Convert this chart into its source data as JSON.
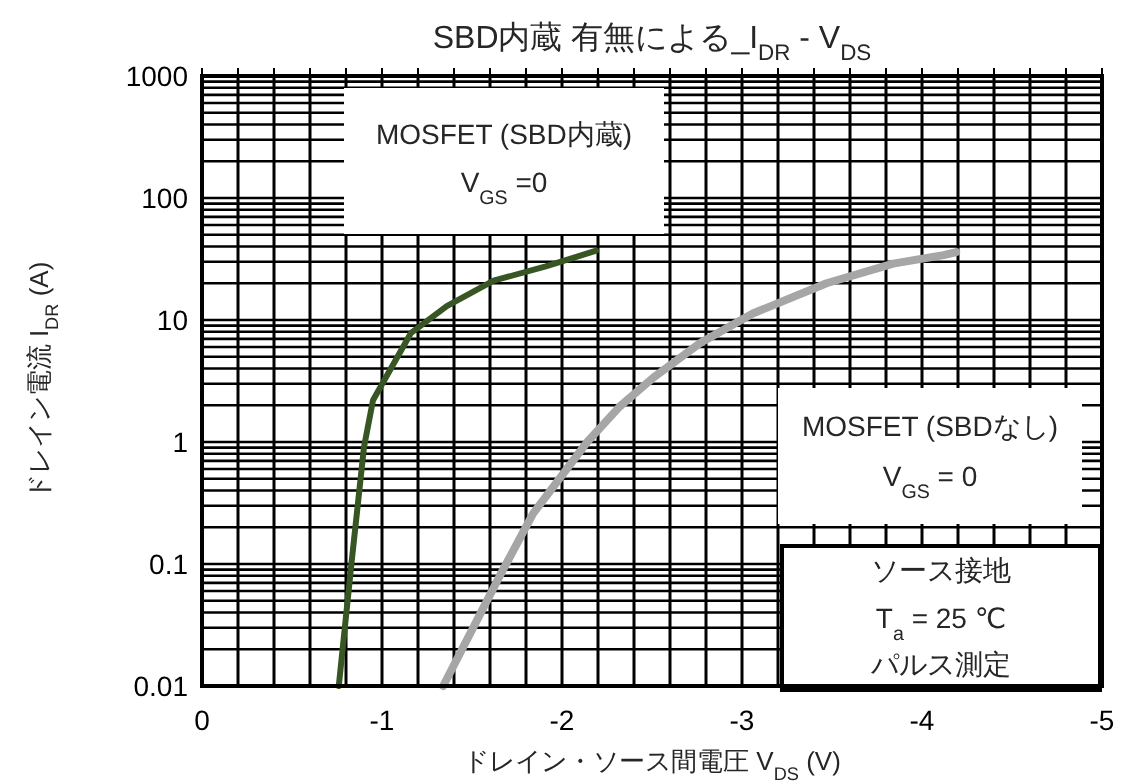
{
  "chart_data": {
    "type": "line",
    "title": "SBD内蔵 有無による_I$_{DR}$ - V$_{DS}$",
    "xlabel": "ドレイン・ソース間電圧  V$_{DS}$  (V)",
    "ylabel": "ドレイン電流 I$_{DR}$ (A)",
    "annotations": [
      "MOSFET (SBD内蔵)",
      "V$_{GS}$ =0",
      "MOSFET (SBDなし)",
      "V$_{GS}$ = 0",
      "ソース接地",
      "T$_{a}$ = 25 ℃",
      "パルス測定"
    ],
    "log": "y",
    "grid": true,
    "xlim": [
      0,
      -5
    ],
    "xticks": [
      0,
      {
        "value": -0.2,
        "label": null
      },
      {
        "value": -0.4,
        "label": null
      },
      {
        "value": -0.6,
        "label": null
      },
      {
        "value": -0.8,
        "label": null
      },
      -1,
      {
        "value": -1.2,
        "label": null
      },
      {
        "value": -1.4,
        "label": null
      },
      {
        "value": -1.6,
        "label": null
      },
      {
        "value": -1.8,
        "label": null
      },
      -2,
      {
        "value": -2.2,
        "label": null
      },
      {
        "value": -2.4,
        "label": null
      },
      {
        "value": -2.6,
        "label": null
      },
      {
        "value": -2.8,
        "label": null
      },
      -3,
      {
        "value": -3.2,
        "label": null
      },
      {
        "value": -3.4,
        "label": null
      },
      {
        "value": -3.6,
        "label": null
      },
      {
        "value": -3.8,
        "label": null
      },
      -4,
      {
        "value": -4.2,
        "label": null
      },
      {
        "value": -4.4,
        "label": null
      },
      {
        "value": -4.6,
        "label": null
      },
      {
        "value": -4.8,
        "label": null
      },
      -5
    ],
    "ylim": [
      0.01,
      1000
    ],
    "yticks": [
      0.01,
      {
        "value": 0.02,
        "label": null
      },
      {
        "value": 0.03,
        "label": null
      },
      {
        "value": 0.04,
        "label": null
      },
      {
        "value": 0.05,
        "label": null
      },
      {
        "value": 0.06,
        "label": null
      },
      {
        "value": 0.07,
        "label": null
      },
      {
        "value": 0.08,
        "label": null
      },
      {
        "value": 0.09,
        "label": null
      },
      0.1,
      {
        "value": 0.2,
        "label": null
      },
      {
        "value": 0.3,
        "label": null
      },
      {
        "value": 0.4,
        "label": null
      },
      {
        "value": 0.5,
        "label": null
      },
      {
        "value": 0.6,
        "label": null
      },
      {
        "value": 0.7,
        "label": null
      },
      {
        "value": 0.8,
        "label": null
      },
      {
        "value": 0.9,
        "label": null
      },
      1,
      {
        "value": 2,
        "label": null
      },
      {
        "value": 3,
        "label": null
      },
      {
        "value": 4,
        "label": null
      },
      {
        "value": 5,
        "label": null
      },
      {
        "value": 6,
        "label": null
      },
      {
        "value": 7,
        "label": null
      },
      {
        "value": 8,
        "label": null
      },
      {
        "value": 9,
        "label": null
      },
      10,
      {
        "value": 20,
        "label": null
      },
      {
        "value": 30,
        "label": null
      },
      {
        "value": 40,
        "label": null
      },
      {
        "value": 50,
        "label": null
      },
      {
        "value": 60,
        "label": null
      },
      {
        "value": 70,
        "label": null
      },
      {
        "value": 80,
        "label": null
      },
      {
        "value": 90,
        "label": null
      },
      100,
      {
        "value": 200,
        "label": null
      },
      {
        "value": 300,
        "label": null
      },
      {
        "value": 400,
        "label": null
      },
      {
        "value": 500,
        "label": null
      },
      {
        "value": 600,
        "label": null
      },
      {
        "value": 700,
        "label": null
      },
      {
        "value": 800,
        "label": null
      },
      {
        "value": 900,
        "label": null
      },
      1000
    ],
    "series": [
      {
        "color": "#375623",
        "x": [
          -0.76,
          -0.83,
          -0.9,
          -0.95,
          -1.16,
          -1.36,
          -1.62,
          -1.91,
          -2.19
        ],
        "values": [
          0.01,
          0.1,
          0.91,
          2.2,
          7.8,
          13,
          21,
          27.5,
          37
        ]
      },
      {
        "color": "#a6a6a6",
        "x": [
          -1.34,
          -1.66,
          -1.84,
          -2.14,
          -2.32,
          -2.51,
          -2.77,
          -3.06,
          -3.47,
          -3.84,
          -4.12,
          -4.19
        ],
        "values": [
          0.01,
          0.083,
          0.26,
          1.0,
          1.95,
          3.4,
          6.5,
          11.3,
          20,
          29,
          34,
          36
        ]
      }
    ]
  }
}
